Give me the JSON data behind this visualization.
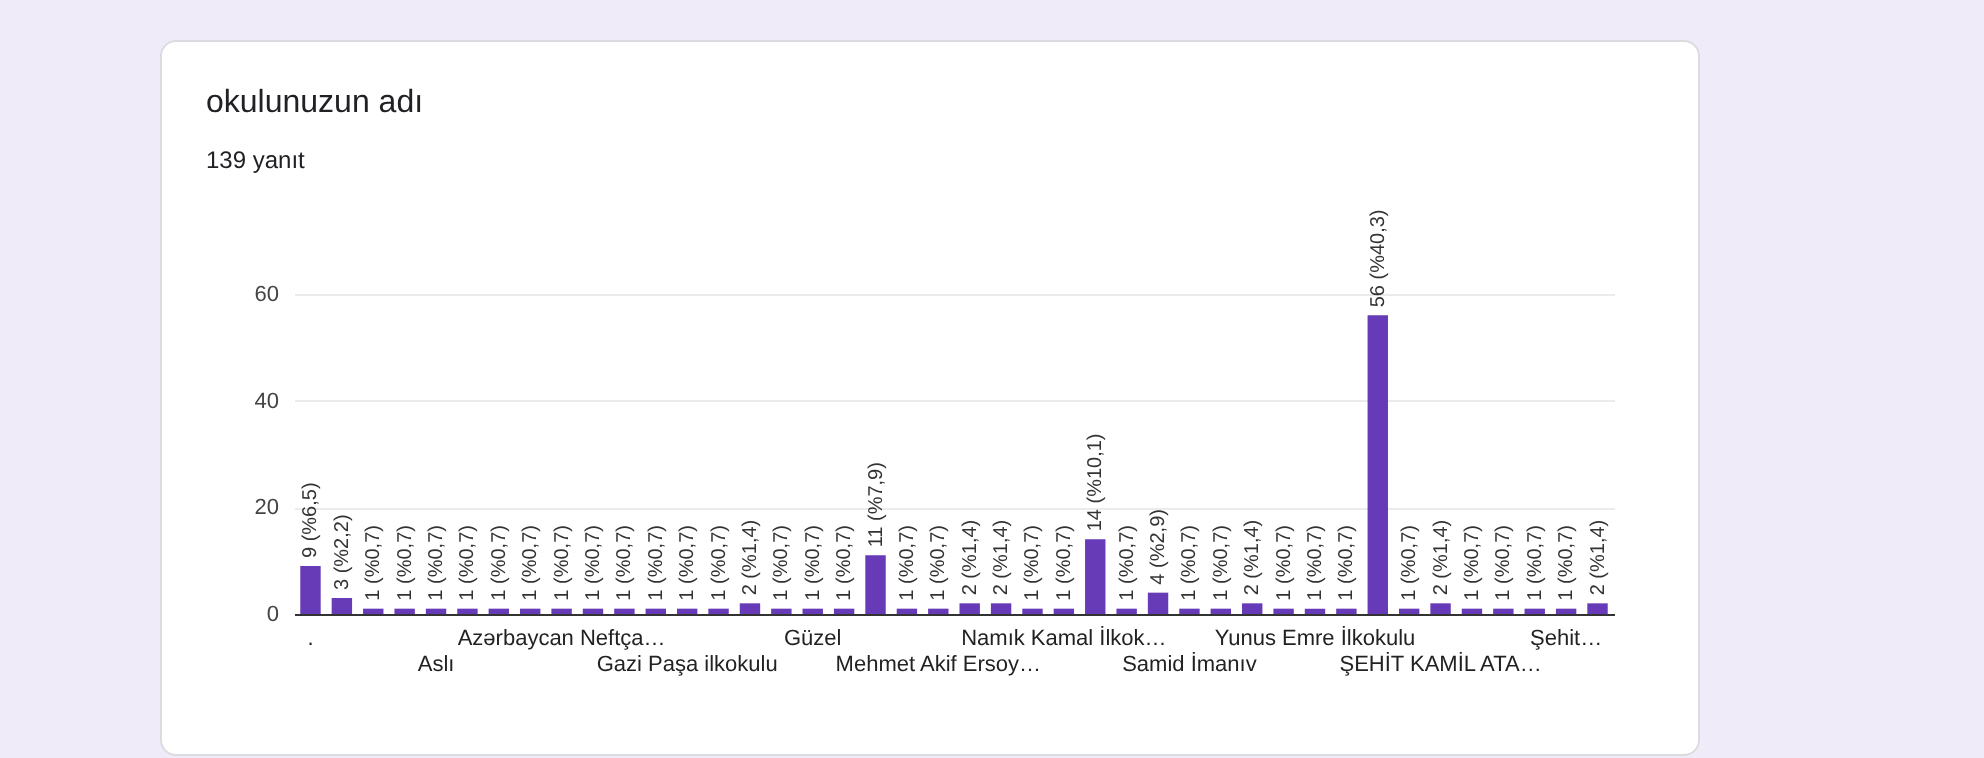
{
  "chart_data": {
    "type": "bar",
    "title": "okulunuzun adı",
    "subtitle": "139 yanıt",
    "categories": [
      ".",
      null,
      null,
      null,
      "Aslı",
      null,
      null,
      null,
      "Azərbaycan Neftça…",
      null,
      null,
      null,
      "Gazi Paşa ilkokulu",
      null,
      null,
      null,
      "Güzel",
      null,
      null,
      null,
      "Mehmet Akif Ersoy…",
      null,
      null,
      null,
      "Namık Kamal İlkok…",
      null,
      null,
      null,
      "Samid İmanıv",
      null,
      null,
      null,
      "Yunus Emre İlkokulu",
      null,
      null,
      null,
      "ŞEHİT KAMİL ATA…",
      null,
      null,
      null,
      "Şehit…",
      null
    ],
    "values": [
      9,
      3,
      1,
      1,
      1,
      1,
      1,
      1,
      1,
      1,
      1,
      1,
      1,
      1,
      2,
      1,
      1,
      1,
      11,
      1,
      1,
      2,
      2,
      1,
      1,
      14,
      1,
      4,
      1,
      1,
      2,
      1,
      1,
      1,
      56,
      1,
      2,
      1,
      1,
      1,
      1,
      2
    ],
    "value_labels": [
      "9 (%6,5)",
      "3 (%2,2)",
      "1 (%0,7)",
      "1 (%0,7)",
      "1 (%0,7)",
      "1 (%0,7)",
      "1 (%0,7)",
      "1 (%0,7)",
      "1 (%0,7)",
      "1 (%0,7)",
      "1 (%0,7)",
      "1 (%0,7)",
      "1 (%0,7)",
      "1 (%0,7)",
      "2 (%1,4)",
      "1 (%0,7)",
      "1 (%0,7)",
      "1 (%0,7)",
      "11 (%7,9)",
      "1 (%0,7)",
      "1 (%0,7)",
      "2 (%1,4)",
      "2 (%1,4)",
      "1 (%0,7)",
      "1 (%0,7)",
      "14 (%10,1)",
      "1 (%0,7)",
      "4 (%2,9)",
      "1 (%0,7)",
      "1 (%0,7)",
      "2 (%1,4)",
      "1 (%0,7)",
      "1 (%0,7)",
      "1 (%0,7)",
      "56 (%40,3)",
      "1 (%0,7)",
      "2 (%1,4)",
      "1 (%0,7)",
      "1 (%0,7)",
      "1 (%0,7)",
      "1 (%0,7)",
      "2 (%1,4)"
    ],
    "color": "#673ab7",
    "ylim": [
      0,
      60
    ],
    "yticks": [
      0,
      20,
      40,
      60
    ],
    "grid": "y"
  }
}
